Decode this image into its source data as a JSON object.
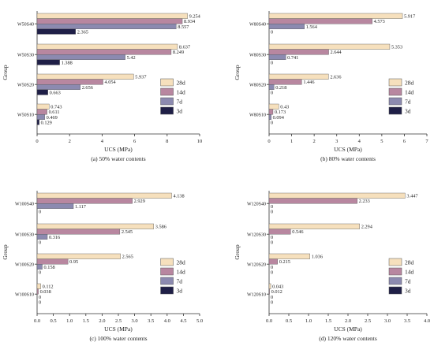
{
  "colors": {
    "28d": "#f6e0bd",
    "14d": "#b887a0",
    "7d": "#8c8ab0",
    "3d": "#1f1f47"
  },
  "chart_data": [
    {
      "type": "bar",
      "orientation": "horizontal",
      "caption": "(a) 50% water contents",
      "xlabel": "UCS (MPa)",
      "ylabel": "Group",
      "xlim": [
        0,
        10
      ],
      "xticks": [
        "0",
        "2",
        "4",
        "6",
        "8",
        "10"
      ],
      "categories": [
        "W50S40",
        "W50S30",
        "W50S20",
        "W50S10"
      ],
      "series": [
        {
          "name": "28d",
          "values": [
            9.254,
            8.637,
            5.937,
            0.743
          ],
          "labels": [
            "9.254",
            "8.637",
            "5.937",
            "0.743"
          ]
        },
        {
          "name": "14d",
          "values": [
            8.934,
            8.249,
            4.054,
            0.611
          ],
          "labels": [
            "8.934",
            "8.249",
            "4.054",
            "0.611"
          ]
        },
        {
          "name": "7d",
          "values": [
            8.557,
            5.42,
            2.656,
            0.469
          ],
          "labels": [
            "8.557",
            "5.42",
            "2.656",
            "0.469"
          ]
        },
        {
          "name": "3d",
          "values": [
            2.365,
            1.388,
            0.663,
            0.129
          ],
          "labels": [
            "2.365",
            "1.388",
            "0.663",
            "0.129"
          ]
        }
      ],
      "legend": "right"
    },
    {
      "type": "bar",
      "orientation": "horizontal",
      "caption": "(b) 80% water contents",
      "xlabel": "UCS (MPa)",
      "ylabel": "Group",
      "xlim": [
        0,
        7
      ],
      "xticks": [
        "0",
        "1",
        "2",
        "3",
        "4",
        "5",
        "6",
        "7"
      ],
      "categories": [
        "W80S40",
        "W80S30",
        "W80S20",
        "W80S10"
      ],
      "series": [
        {
          "name": "28d",
          "values": [
            5.917,
            5.353,
            2.636,
            0.43
          ],
          "labels": [
            "5.917",
            "5.353",
            "2.636",
            "0.43"
          ]
        },
        {
          "name": "14d",
          "values": [
            4.573,
            2.644,
            1.446,
            0.173
          ],
          "labels": [
            "4.573",
            "2.644",
            "1.446",
            "0.173"
          ]
        },
        {
          "name": "7d",
          "values": [
            1.564,
            0.741,
            0.218,
            0.094
          ],
          "labels": [
            "1.564",
            "0.741",
            "0.218",
            "0.094"
          ]
        },
        {
          "name": "3d",
          "values": [
            0,
            0,
            0,
            0
          ],
          "labels": [
            "0",
            "0",
            "0",
            "0"
          ]
        }
      ],
      "legend": "right"
    },
    {
      "type": "bar",
      "orientation": "horizontal",
      "caption": "(c) 100% water contents",
      "xlabel": "UCS (MPa)",
      "ylabel": "Group",
      "xlim": [
        0,
        5
      ],
      "xticks": [
        "0.0",
        "0.5",
        "1.0",
        "1.5",
        "2.0",
        "2.5",
        "3.0",
        "3.5",
        "4.0",
        "4.5",
        "5.0"
      ],
      "categories": [
        "W100S40",
        "W100S30",
        "W100S20",
        "W100S10"
      ],
      "series": [
        {
          "name": "28d",
          "values": [
            4.138,
            3.586,
            2.565,
            0.112
          ],
          "labels": [
            "4.138",
            "3.586",
            "2.565",
            "0.112"
          ]
        },
        {
          "name": "14d",
          "values": [
            2.929,
            2.545,
            0.95,
            0.038
          ],
          "labels": [
            "2.929",
            "2.545",
            "0.95",
            "0.038"
          ]
        },
        {
          "name": "7d",
          "values": [
            1.117,
            0.316,
            0.158,
            0
          ],
          "labels": [
            "1.117",
            "0.316",
            "0.158",
            "0"
          ]
        },
        {
          "name": "3d",
          "values": [
            0,
            0,
            0,
            0
          ],
          "labels": [
            "0",
            "0",
            "0",
            "0"
          ]
        }
      ],
      "legend": "right"
    },
    {
      "type": "bar",
      "orientation": "horizontal",
      "caption": "(d) 120% water contents",
      "xlabel": "UCS (MPa)",
      "ylabel": "Group",
      "xlim": [
        0,
        4
      ],
      "xticks": [
        "0.0",
        "0.5",
        "1.0",
        "1.5",
        "2.0",
        "2.5",
        "3.0",
        "3.5",
        "4.0"
      ],
      "categories": [
        "W120S40",
        "W120S30",
        "W120S20",
        "W120S10"
      ],
      "series": [
        {
          "name": "28d",
          "values": [
            3.447,
            2.294,
            1.036,
            0.043
          ],
          "labels": [
            "3.447",
            "2.294",
            "1.036",
            "0.043"
          ]
        },
        {
          "name": "14d",
          "values": [
            2.233,
            0.546,
            0.215,
            0.012
          ],
          "labels": [
            "2.233",
            "0.546",
            "0.215",
            "0.012"
          ]
        },
        {
          "name": "7d",
          "values": [
            0,
            0,
            0,
            0
          ],
          "labels": [
            "0",
            "0",
            "0",
            "0"
          ]
        },
        {
          "name": "3d",
          "values": [
            0,
            0,
            0,
            0
          ],
          "labels": [
            "0",
            "0",
            "0",
            "0"
          ]
        }
      ],
      "legend": "right"
    }
  ]
}
